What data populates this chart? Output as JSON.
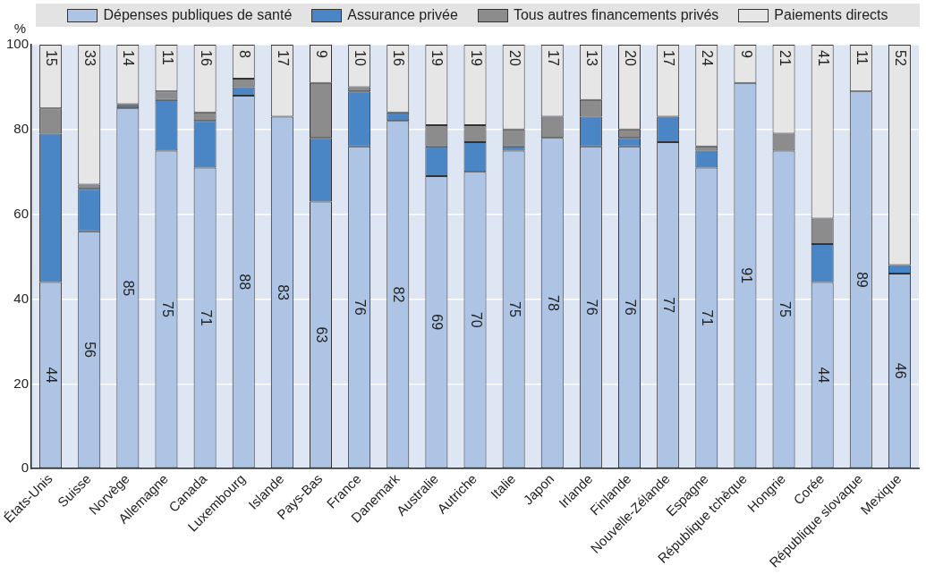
{
  "chart_data": {
    "type": "bar",
    "stacked": true,
    "ylabel": "%",
    "categories": [
      "États-Unis",
      "Suisse",
      "Norvège",
      "Allemagne",
      "Canada",
      "Luxembourg",
      "Islande",
      "Pays-Bas",
      "France",
      "Danemark",
      "Australie",
      "Autriche",
      "Italie",
      "Japon",
      "Irlande",
      "Finlande",
      "Nouvelle-Zélande",
      "Espagne",
      "République tchèque",
      "Hongrie",
      "Corée",
      "République slovaque",
      "Mexique"
    ],
    "series": [
      {
        "name": "Dépenses publiques de santé",
        "color": "#aec4e5",
        "values": [
          44,
          56,
          85,
          75,
          71,
          88,
          83,
          63,
          76,
          82,
          69,
          70,
          75,
          78,
          76,
          76,
          77,
          71,
          91,
          75,
          44,
          89,
          46
        ],
        "value_labels": [
          "44",
          "56",
          "85",
          "75",
          "71",
          "88",
          "83",
          "63",
          "76",
          "82",
          "69",
          "70",
          "75",
          "78",
          "76",
          "76",
          "77",
          "71",
          "91",
          "75",
          "44",
          "89",
          "46"
        ]
      },
      {
        "name": "Assurance privée",
        "color": "#4a86c5",
        "values": [
          35,
          10,
          0.5,
          12,
          11,
          2,
          0,
          15,
          13,
          2,
          7,
          7,
          1,
          0,
          7,
          2,
          6,
          4,
          0,
          0,
          9,
          0,
          2
        ]
      },
      {
        "name": "Tous autres financements privés",
        "color": "#8c8c8c",
        "values": [
          6,
          1,
          0.5,
          2,
          2,
          2,
          0,
          13,
          1,
          0,
          5,
          4,
          4,
          5,
          4,
          2,
          0,
          1,
          0,
          4,
          6,
          0,
          0
        ]
      },
      {
        "name": "Paiements directs",
        "color": "#e6e6e6",
        "values": [
          15,
          33,
          14,
          11,
          16,
          8,
          17,
          9,
          10,
          16,
          19,
          19,
          20,
          17,
          13,
          20,
          17,
          24,
          9,
          21,
          41,
          11,
          52
        ],
        "value_labels": [
          "15",
          "33",
          "14",
          "11",
          "16",
          "8",
          "17",
          "9",
          "10",
          "16",
          "19",
          "19",
          "20",
          "17",
          "13",
          "20",
          "17",
          "24",
          "9",
          "21",
          "41",
          "11",
          "52"
        ]
      }
    ],
    "ylim": [
      0,
      100
    ],
    "yticks": [
      0,
      20,
      40,
      60,
      80,
      100
    ],
    "grid": "y",
    "legend": "top"
  }
}
